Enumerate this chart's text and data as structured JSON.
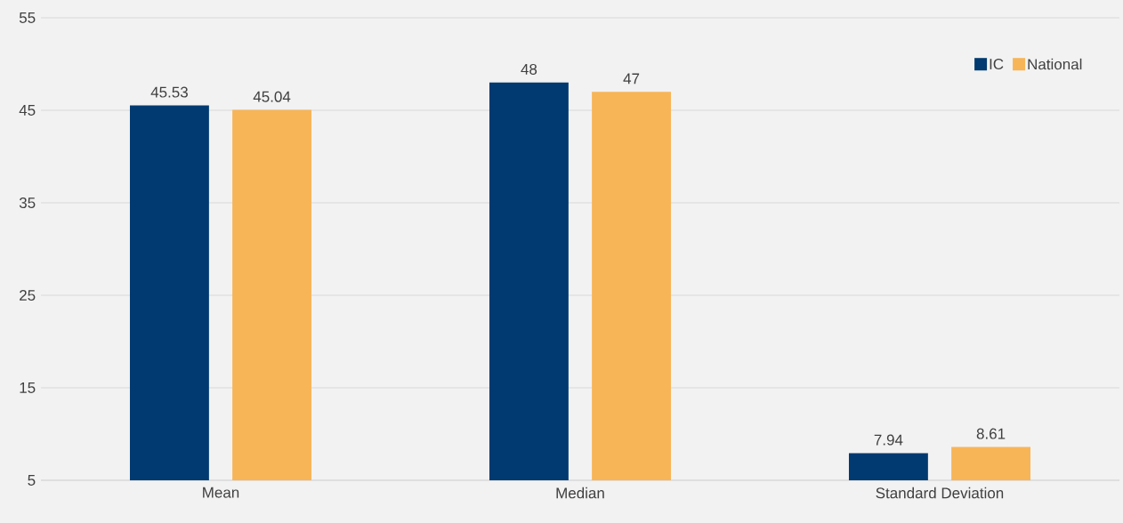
{
  "chart_data": {
    "type": "bar",
    "categories": [
      "Mean",
      "Median",
      "Standard Deviation"
    ],
    "series": [
      {
        "name": "IC",
        "color": "#003a70",
        "values": [
          45.53,
          48,
          7.94
        ]
      },
      {
        "name": "National",
        "color": "#f7b558",
        "values": [
          45.04,
          47,
          8.61
        ]
      }
    ],
    "ylim": [
      5,
      55
    ],
    "yticks": [
      5,
      15,
      25,
      35,
      45,
      55
    ],
    "grid": "y",
    "legend": "top right",
    "data_labels": true
  }
}
